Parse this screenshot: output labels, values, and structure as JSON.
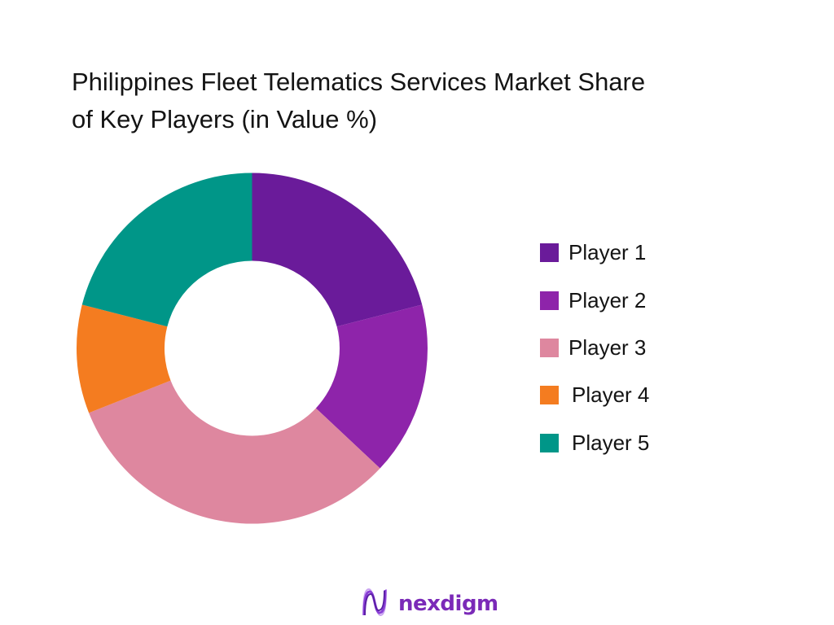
{
  "title": {
    "line1": "Philippines Fleet Telematics Services Market Share",
    "line2": "of Key Players (in Value %)"
  },
  "chart_data": {
    "type": "pie",
    "variant": "donut",
    "title": "Philippines Fleet Telematics Services Market Share of Key Players (in Value %)",
    "categories": [
      "Player 1",
      "Player 2",
      "Player 3",
      "Player 4",
      "Player 5"
    ],
    "values": [
      21,
      16,
      32,
      10,
      21
    ],
    "unit": "%",
    "colors": [
      "#6A1B9A",
      "#8E24AA",
      "#DE879F",
      "#F47C20",
      "#009688"
    ],
    "start_angle": "12 o'clock, clockwise",
    "legend_position": "right",
    "data_labels": false
  },
  "legend": {
    "items": [
      {
        "label": "Player 1",
        "color": "#6A1B9A"
      },
      {
        "label": "Player 2",
        "color": "#8E24AA"
      },
      {
        "label": "Player 3",
        "color": "#DE879F"
      },
      {
        "label": "Player 4",
        "color": "#F47C20"
      },
      {
        "label": "Player 5",
        "color": "#009688"
      }
    ]
  },
  "brand": {
    "logo_icon": "nexdigm-wave-icon",
    "name": "nexdigm",
    "color": "#7B2AB8"
  }
}
